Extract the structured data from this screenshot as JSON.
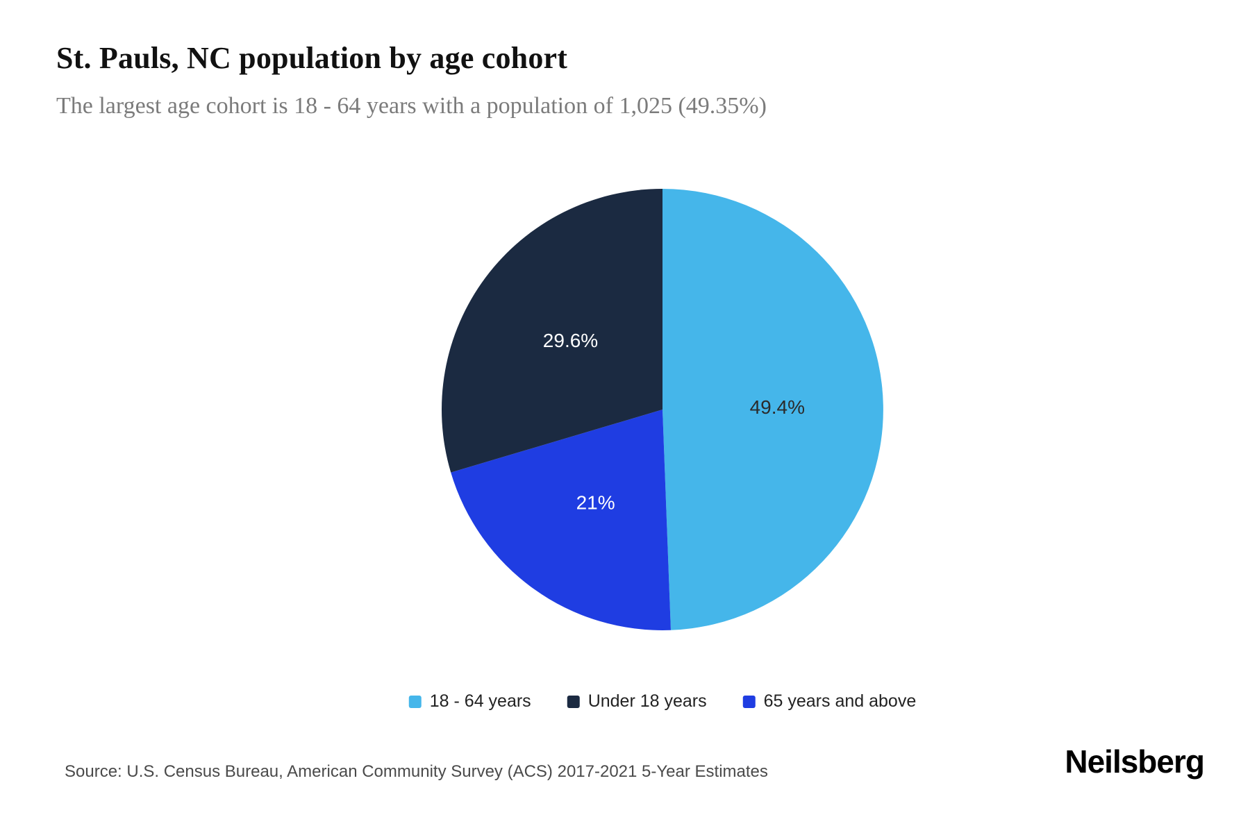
{
  "page": {
    "background": "#ffffff"
  },
  "header": {
    "title": "St. Pauls, NC population by age cohort",
    "subtitle": "The largest age cohort is 18 - 64 years with a population of 1,025 (49.35%)"
  },
  "chart_data": {
    "type": "pie",
    "title": "St. Pauls, NC population by age cohort",
    "legend_position": "bottom",
    "start_angle_deg": 0,
    "direction": "clockwise",
    "draw_order": [
      0,
      2,
      1
    ],
    "slices": [
      {
        "label": "18 - 64 years",
        "value": 49.4,
        "display": "49.4%",
        "color": "#45b6ea",
        "label_color": "#2b2b2b"
      },
      {
        "label": "Under 18 years",
        "value": 29.6,
        "display": "29.6%",
        "color": "#1b2a41",
        "label_color": "#ffffff"
      },
      {
        "label": "65 years and above",
        "value": 21.0,
        "display": "21%",
        "color": "#1f3de2",
        "label_color": "#ffffff"
      }
    ]
  },
  "footer": {
    "source": "Source: U.S. Census Bureau, American Community Survey (ACS) 2017-2021 5-Year Estimates",
    "brand": "Neilsberg"
  }
}
